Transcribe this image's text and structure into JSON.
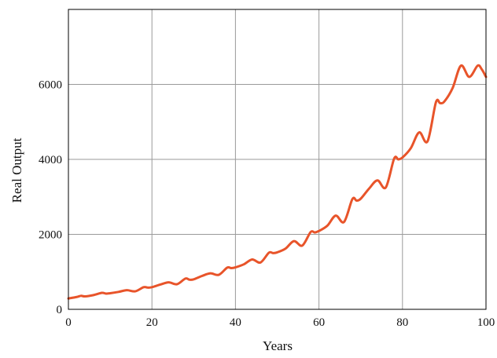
{
  "chart_data": {
    "type": "line",
    "title": "",
    "xlabel": "Years",
    "ylabel": "Real Output",
    "xlim": [
      0,
      100
    ],
    "ylim": [
      0,
      8000
    ],
    "x_ticks": [
      0,
      20,
      40,
      60,
      80,
      100
    ],
    "y_ticks": [
      0,
      2000,
      4000,
      6000
    ],
    "grid": true,
    "legend": "none",
    "line_color": "#e8542a",
    "grid_color": "#9a9a9a",
    "series": [
      {
        "x": [
          0,
          2,
          3,
          4,
          6,
          8,
          9,
          10,
          12,
          14,
          16,
          18,
          19,
          20,
          22,
          24,
          26,
          28,
          29,
          30,
          32,
          34,
          36,
          38,
          39,
          40,
          42,
          44,
          46,
          48,
          49,
          50,
          52,
          54,
          56,
          58,
          59,
          60,
          62,
          64,
          66,
          68,
          69,
          70,
          72,
          74,
          76,
          78,
          79,
          80,
          82,
          84,
          86,
          88,
          89,
          90,
          92,
          94,
          96,
          98,
          99,
          100
        ],
        "values": [
          290,
          330,
          360,
          345,
          380,
          440,
          420,
          430,
          465,
          510,
          480,
          590,
          580,
          590,
          660,
          720,
          670,
          820,
          790,
          800,
          890,
          960,
          920,
          1110,
          1100,
          1120,
          1200,
          1330,
          1250,
          1510,
          1500,
          1520,
          1620,
          1820,
          1700,
          2060,
          2050,
          2090,
          2230,
          2500,
          2330,
          2940,
          2900,
          2950,
          3220,
          3440,
          3250,
          4020,
          4000,
          4050,
          4300,
          4720,
          4480,
          5520,
          5500,
          5540,
          5900,
          6500,
          6200,
          6500,
          6400,
          6200
        ]
      }
    ]
  }
}
